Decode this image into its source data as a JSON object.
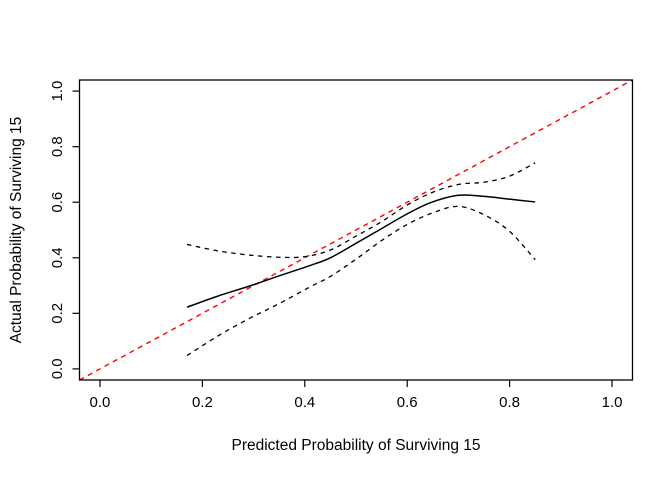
{
  "window": {
    "background": "#ffffff"
  },
  "chart_data": {
    "type": "line",
    "title": "",
    "xlabel": "Predicted Probability of Surviving 15",
    "ylabel": "Actual Probability of Surviving 15",
    "xlim": [
      -0.04,
      1.04
    ],
    "ylim": [
      -0.04,
      1.04
    ],
    "grid": false,
    "legend": "none",
    "frame": true,
    "axis_color": "#000000",
    "ideal_color": "#ff0000",
    "curve_color": "#000000",
    "xticks": {
      "values": [
        0.0,
        0.2,
        0.4,
        0.6,
        0.8,
        1.0
      ],
      "labels": [
        "0.0",
        "0.2",
        "0.4",
        "0.6",
        "0.8",
        "1.0"
      ]
    },
    "yticks": {
      "values": [
        0.0,
        0.2,
        0.4,
        0.6,
        0.8,
        1.0
      ],
      "labels": [
        "0.0",
        "0.2",
        "0.4",
        "0.6",
        "0.8",
        "1.0"
      ]
    },
    "series": [
      {
        "name": "ideal-line",
        "role": "ideal reference y = x",
        "color": "#ff0000",
        "style": "dashed",
        "dash": [
          5,
          4.5
        ],
        "width": 1.4,
        "smooth": false,
        "x": [
          -0.04,
          1.04
        ],
        "y": [
          -0.04,
          1.04
        ]
      },
      {
        "name": "calibration-curve",
        "role": "observed calibration (solid)",
        "color": "#000000",
        "style": "solid",
        "dash": [],
        "width": 1.5,
        "smooth": true,
        "x": [
          0.17,
          0.23,
          0.29,
          0.35,
          0.41,
          0.45,
          0.5,
          0.55,
          0.6,
          0.645,
          0.7,
          0.75,
          0.8,
          0.85
        ],
        "y": [
          0.222,
          0.262,
          0.297,
          0.335,
          0.372,
          0.4,
          0.452,
          0.505,
          0.558,
          0.598,
          0.625,
          0.621,
          0.611,
          0.601
        ]
      },
      {
        "name": "upper-confidence-band",
        "role": "upper confidence limit (dashed)",
        "color": "#000000",
        "style": "dashed",
        "dash": [
          4.5,
          4.5
        ],
        "width": 1.3,
        "smooth": true,
        "x": [
          0.17,
          0.23,
          0.29,
          0.35,
          0.4,
          0.45,
          0.5,
          0.55,
          0.6,
          0.65,
          0.7,
          0.75,
          0.8,
          0.85
        ],
        "y": [
          0.448,
          0.425,
          0.41,
          0.402,
          0.404,
          0.428,
          0.478,
          0.53,
          0.59,
          0.636,
          0.664,
          0.672,
          0.694,
          0.742
        ]
      },
      {
        "name": "lower-confidence-band",
        "role": "lower confidence limit (dashed)",
        "color": "#000000",
        "style": "dashed",
        "dash": [
          4.5,
          4.5
        ],
        "width": 1.3,
        "smooth": true,
        "x": [
          0.17,
          0.23,
          0.29,
          0.35,
          0.41,
          0.45,
          0.5,
          0.55,
          0.6,
          0.65,
          0.7,
          0.75,
          0.8,
          0.85
        ],
        "y": [
          0.048,
          0.118,
          0.18,
          0.235,
          0.295,
          0.333,
          0.395,
          0.462,
          0.52,
          0.562,
          0.585,
          0.555,
          0.495,
          0.393
        ]
      }
    ]
  }
}
